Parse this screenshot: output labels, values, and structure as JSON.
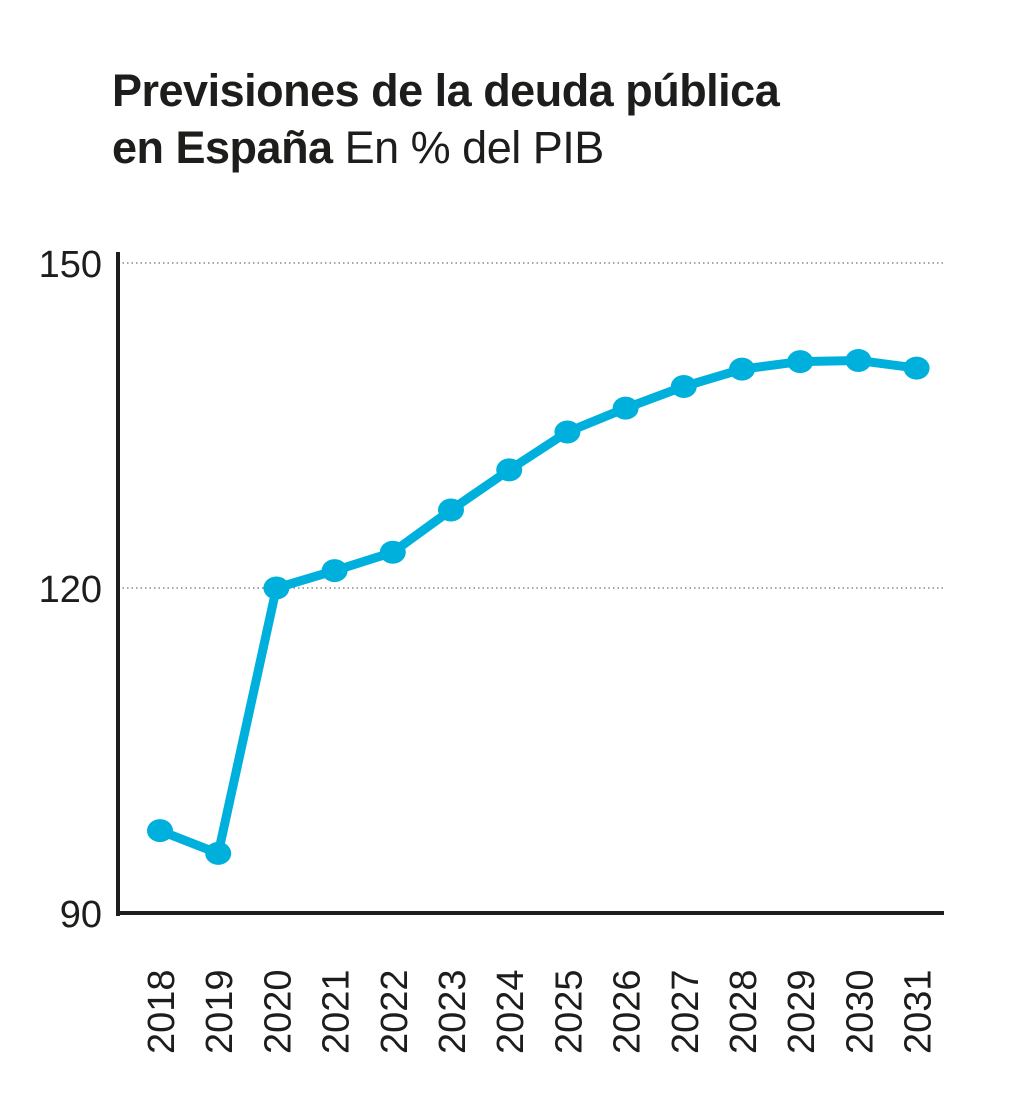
{
  "title": {
    "line1": "Previsiones de la deuda pública",
    "line2_bold": "en España",
    "line2_light": "En % del PIB"
  },
  "colors": {
    "series": "#00b0dc",
    "axis": "#1d1d1b",
    "grid": "#888888"
  },
  "chart_data": {
    "type": "line",
    "title": "Previsiones de la deuda pública en España",
    "subtitle": "En % del PIB",
    "xlabel": "",
    "ylabel": "",
    "x": [
      "2018",
      "2019",
      "2020",
      "2021",
      "2022",
      "2023",
      "2024",
      "2025",
      "2026",
      "2027",
      "2028",
      "2029",
      "2030",
      "2031"
    ],
    "series": [
      {
        "values": [
          97.6,
          95.5,
          120.0,
          121.6,
          123.3,
          127.2,
          130.9,
          134.4,
          136.6,
          138.6,
          140.2,
          140.9,
          141.0,
          140.3
        ]
      }
    ],
    "ylim": [
      90,
      150
    ],
    "yticks": [
      "90",
      "120",
      "150"
    ],
    "grid": "dotted horizontal at 120 and 150",
    "legend": "none",
    "markers": true
  }
}
